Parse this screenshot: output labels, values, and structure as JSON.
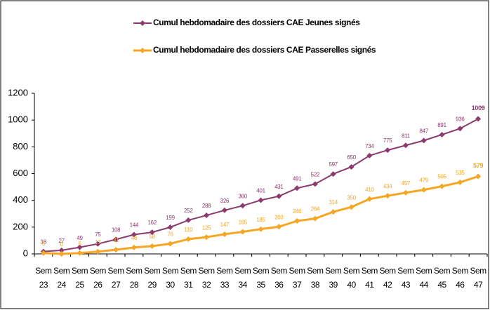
{
  "chart_data": {
    "type": "line",
    "categories": [
      "Sem 23",
      "Sem 24",
      "Sem 25",
      "Sem 26",
      "Sem 27",
      "Sem 28",
      "Sem 29",
      "Sem 30",
      "Sem 31",
      "Sem 32",
      "Sem 33",
      "Sem 34",
      "Sem 35",
      "Sem 36",
      "Sem 37",
      "Sem 38",
      "Sem 39",
      "Sem 40",
      "Sem 41",
      "Sem 42",
      "Sem 43",
      "Sem 44",
      "Sem 45",
      "Sem 46",
      "Sem 47"
    ],
    "series": [
      {
        "name": "Cumul hebdomadaire des dossiers CAE Jeunes signés",
        "color": "#8b3a6e",
        "values": [
          18,
          27,
          49,
          75,
          108,
          144,
          162,
          199,
          252,
          288,
          326,
          360,
          401,
          431,
          491,
          522,
          597,
          650,
          734,
          775,
          811,
          847,
          891,
          936,
          1009
        ]
      },
      {
        "name": "Cumul hebdomadaire des dossiers CAE Passerelles signés",
        "color": "#f5a623",
        "values": [
          6,
          0,
          6,
          17,
          31,
          48,
          58,
          76,
          110,
          125,
          147,
          165,
          185,
          203,
          246,
          264,
          314,
          350,
          410,
          434,
          457,
          479,
          505,
          535,
          579
        ]
      }
    ],
    "ylim": [
      0,
      1200
    ],
    "yticks": [
      0,
      200,
      400,
      600,
      800,
      1000,
      1200
    ],
    "legend": "top"
  }
}
